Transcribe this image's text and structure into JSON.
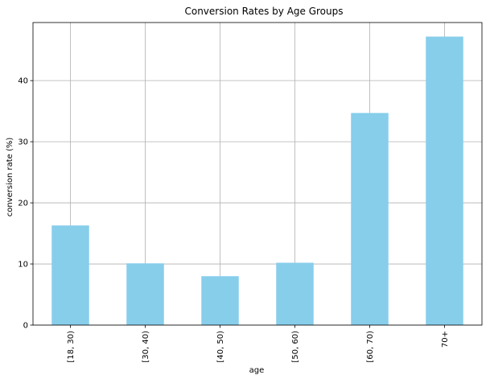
{
  "chart_data": {
    "type": "bar",
    "title": "Conversion Rates by Age Groups",
    "xlabel": "age",
    "ylabel": "conversion rate (%)",
    "categories": [
      "[18, 30)",
      "[30, 40)",
      "[40, 50)",
      "[50, 60)",
      "[60, 70)",
      "70+"
    ],
    "values": [
      16.3,
      10.1,
      8.0,
      10.2,
      34.7,
      47.2
    ],
    "ylim": [
      0,
      49.5
    ],
    "yticks": [
      0,
      10,
      20,
      30,
      40
    ],
    "grid": true,
    "bar_color": "#87ceeb",
    "grid_color": "#b0b0b0"
  }
}
